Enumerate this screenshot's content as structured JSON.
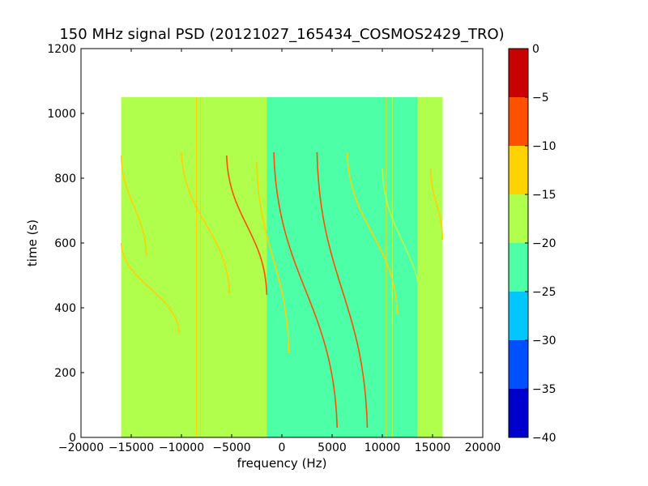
{
  "chart_data": {
    "type": "heatmap",
    "title": "150 MHz signal PSD (20121027_165434_COSMOS2429_TRO)",
    "xlabel": "frequency (Hz)",
    "ylabel": "time (s)",
    "xlim": [
      -20000,
      20000
    ],
    "ylim": [
      0,
      1200
    ],
    "xticks": [
      -20000,
      -15000,
      -10000,
      -5000,
      0,
      5000,
      10000,
      15000,
      20000
    ],
    "xtick_labels": [
      "−20000",
      "−15000",
      "−10000",
      "−5000",
      "0",
      "5000",
      "10000",
      "15000",
      "20000"
    ],
    "yticks": [
      0,
      200,
      400,
      600,
      800,
      1000,
      1200
    ],
    "ytick_labels": [
      "0",
      "200",
      "400",
      "600",
      "800",
      "1000",
      "1200"
    ],
    "data_extent": {
      "x": [
        -16000,
        16000
      ],
      "y": [
        0,
        1050
      ]
    },
    "background_regions": [
      {
        "x": [
          -16000,
          -1500
        ],
        "level": -17.5
      },
      {
        "x": [
          -1500,
          13500
        ],
        "level": -22.5
      },
      {
        "x": [
          13500,
          16000
        ],
        "level": -17.5
      }
    ],
    "vertical_lines": [
      {
        "x": -8500,
        "level": -12.5
      },
      {
        "x": -8100,
        "level": -12.5
      },
      {
        "x": -1500,
        "level": -12.5
      },
      {
        "x": 10400,
        "level": -12.5
      },
      {
        "x": 11000,
        "level": -17.5
      }
    ],
    "signal_traces": [
      {
        "x_start": -16000,
        "x_end": -10200,
        "t_start": 600,
        "t_end": 320,
        "level": -12.5
      },
      {
        "x_start": -16000,
        "x_end": -13500,
        "t_start": 870,
        "t_end": 560,
        "level": -12.5
      },
      {
        "x_start": -10000,
        "x_end": -5200,
        "t_start": 880,
        "t_end": 440,
        "level": -12.5
      },
      {
        "x_start": -5500,
        "x_end": -1500,
        "t_start": 870,
        "t_end": 440,
        "level": -7.5
      },
      {
        "x_start": -2500,
        "x_end": 700,
        "t_start": 850,
        "t_end": 260,
        "level": -12.5
      },
      {
        "x_start": -800,
        "x_end": 5500,
        "t_start": 880,
        "t_end": 30,
        "level": -7.5
      },
      {
        "x_start": 3500,
        "x_end": 8500,
        "t_start": 880,
        "t_end": 30,
        "level": -7.5
      },
      {
        "x_start": 6500,
        "x_end": 11500,
        "t_start": 880,
        "t_end": 380,
        "level": -12.5
      },
      {
        "x_start": 10000,
        "x_end": 14000,
        "t_start": 830,
        "t_end": 380,
        "level": -17.5
      },
      {
        "x_start": 14800,
        "x_end": 16000,
        "t_start": 830,
        "t_end": 610,
        "level": -12.5
      }
    ],
    "colorbar": {
      "levels": [
        -40,
        -35,
        -30,
        -25,
        -20,
        -15,
        -10,
        -5,
        0
      ],
      "tick_labels": [
        "−40",
        "−35",
        "−30",
        "−25",
        "−20",
        "−15",
        "−10",
        "−5",
        "0"
      ],
      "colors": [
        "#0000cc",
        "#0050ff",
        "#00c8ff",
        "#4dffa6",
        "#b0ff4d",
        "#ffd200",
        "#ff5000",
        "#c80000"
      ]
    }
  }
}
